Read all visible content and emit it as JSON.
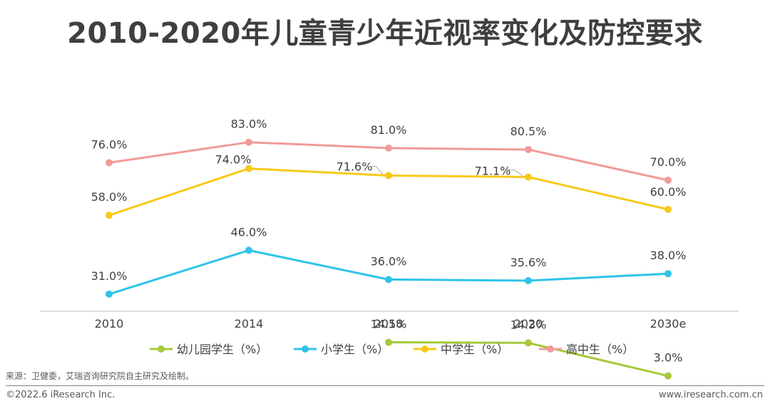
{
  "title": "2010-2020年儿童青少年近视率变化及防控要求",
  "source": "来源：卫健委，艾瑞咨询研究院自主研究及绘制。",
  "copyright": "©2022.6 iResearch Inc.",
  "website": "www.iresearch.com.cn",
  "chart_data": {
    "type": "line",
    "categories": [
      "2010",
      "2014",
      "2018",
      "2020",
      "2030e"
    ],
    "ylim": [
      0,
      100
    ],
    "grid": false,
    "legend_position": "bottom",
    "series": [
      {
        "name": "幼儿园学生（%）",
        "color": "#a5c93a",
        "values": [
          null,
          null,
          14.5,
          14.3,
          3.0
        ],
        "labels": [
          "",
          "",
          "14.5%",
          "14.3%",
          "3.0%"
        ]
      },
      {
        "name": "小学生（%）",
        "color": "#2ec4e8",
        "values": [
          31.0,
          46.0,
          36.0,
          35.6,
          38.0
        ],
        "labels": [
          "31.0%",
          "46.0%",
          "36.0%",
          "35.6%",
          "38.0%"
        ]
      },
      {
        "name": "中学生（%）",
        "color": "#f7c91a",
        "values": [
          58.0,
          74.0,
          71.6,
          71.1,
          60.0
        ],
        "labels": [
          "58.0%",
          "74.0%",
          "71.6%",
          "71.1%",
          "60.0%"
        ]
      },
      {
        "name": "高中生（%）",
        "color": "#f09b99",
        "values": [
          76.0,
          83.0,
          81.0,
          80.5,
          70.0
        ],
        "labels": [
          "76.0%",
          "83.0%",
          "81.0%",
          "80.5%",
          "70.0%"
        ]
      }
    ]
  }
}
